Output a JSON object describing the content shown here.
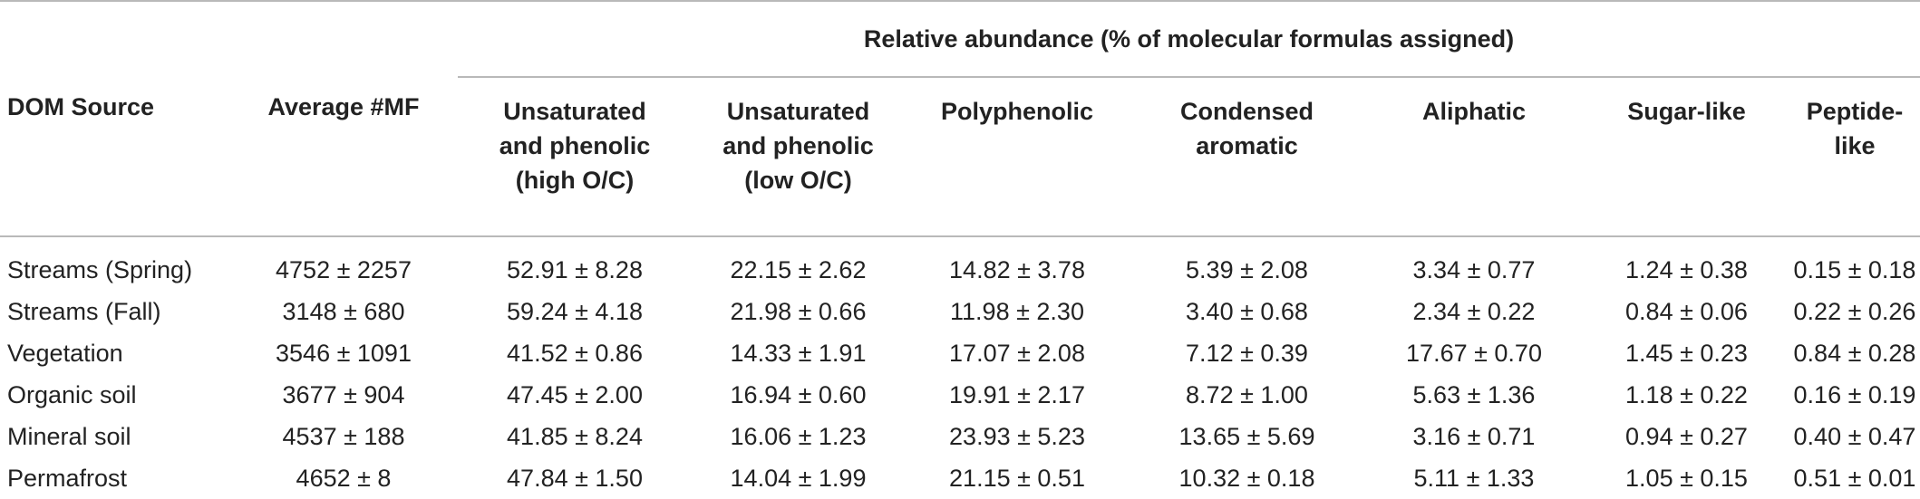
{
  "table": {
    "group_header": "Relative abundance (% of molecular formulas assigned)",
    "row_header": "DOM Source",
    "avg_header": "Average #MF",
    "columns": [
      [
        "Unsaturated",
        "and phenolic",
        "(high O/C)"
      ],
      [
        "Unsaturated",
        "and phenolic",
        "(low O/C)"
      ],
      [
        "Polyphenolic"
      ],
      [
        "Condensed",
        "aromatic"
      ],
      [
        "Aliphatic"
      ],
      [
        "Sugar-like"
      ],
      [
        "Peptide-like"
      ]
    ],
    "rows": [
      {
        "source": "Streams (Spring)",
        "avg": "4752 ± 2257",
        "values": [
          "52.91 ± 8.28",
          "22.15 ± 2.62",
          "14.82 ± 3.78",
          "5.39 ± 2.08",
          "3.34 ± 0.77",
          "1.24 ± 0.38",
          "0.15 ± 0.18"
        ]
      },
      {
        "source": "Streams (Fall)",
        "avg": "3148 ± 680",
        "values": [
          "59.24 ± 4.18",
          "21.98 ± 0.66",
          "11.98 ± 2.30",
          "3.40 ± 0.68",
          "2.34 ± 0.22",
          "0.84 ± 0.06",
          "0.22 ± 0.26"
        ]
      },
      {
        "source": "Vegetation",
        "avg": "3546 ± 1091",
        "values": [
          "41.52 ± 0.86",
          "14.33 ± 1.91",
          "17.07 ± 2.08",
          "7.12 ± 0.39",
          "17.67 ± 0.70",
          "1.45 ± 0.23",
          "0.84 ± 0.28"
        ]
      },
      {
        "source": "Organic soil",
        "avg": "3677 ± 904",
        "values": [
          "47.45 ± 2.00",
          "16.94 ± 0.60",
          "19.91 ± 2.17",
          "8.72 ± 1.00",
          "5.63 ± 1.36",
          "1.18 ± 0.22",
          "0.16 ± 0.19"
        ]
      },
      {
        "source": "Mineral soil",
        "avg": "4537 ± 188",
        "values": [
          "41.85 ± 8.24",
          "16.06 ± 1.23",
          "23.93 ± 5.23",
          "13.65 ± 5.69",
          "3.16 ± 0.71",
          "0.94 ± 0.27",
          "0.40 ± 0.47"
        ]
      },
      {
        "source": "Permafrost",
        "avg": "4652 ± 8",
        "values": [
          "47.84 ± 1.50",
          "14.04 ± 1.99",
          "21.15 ± 0.51",
          "10.32 ± 0.18",
          "5.11 ± 1.33",
          "1.05 ± 0.15",
          "0.51 ± 0.01"
        ]
      }
    ]
  }
}
